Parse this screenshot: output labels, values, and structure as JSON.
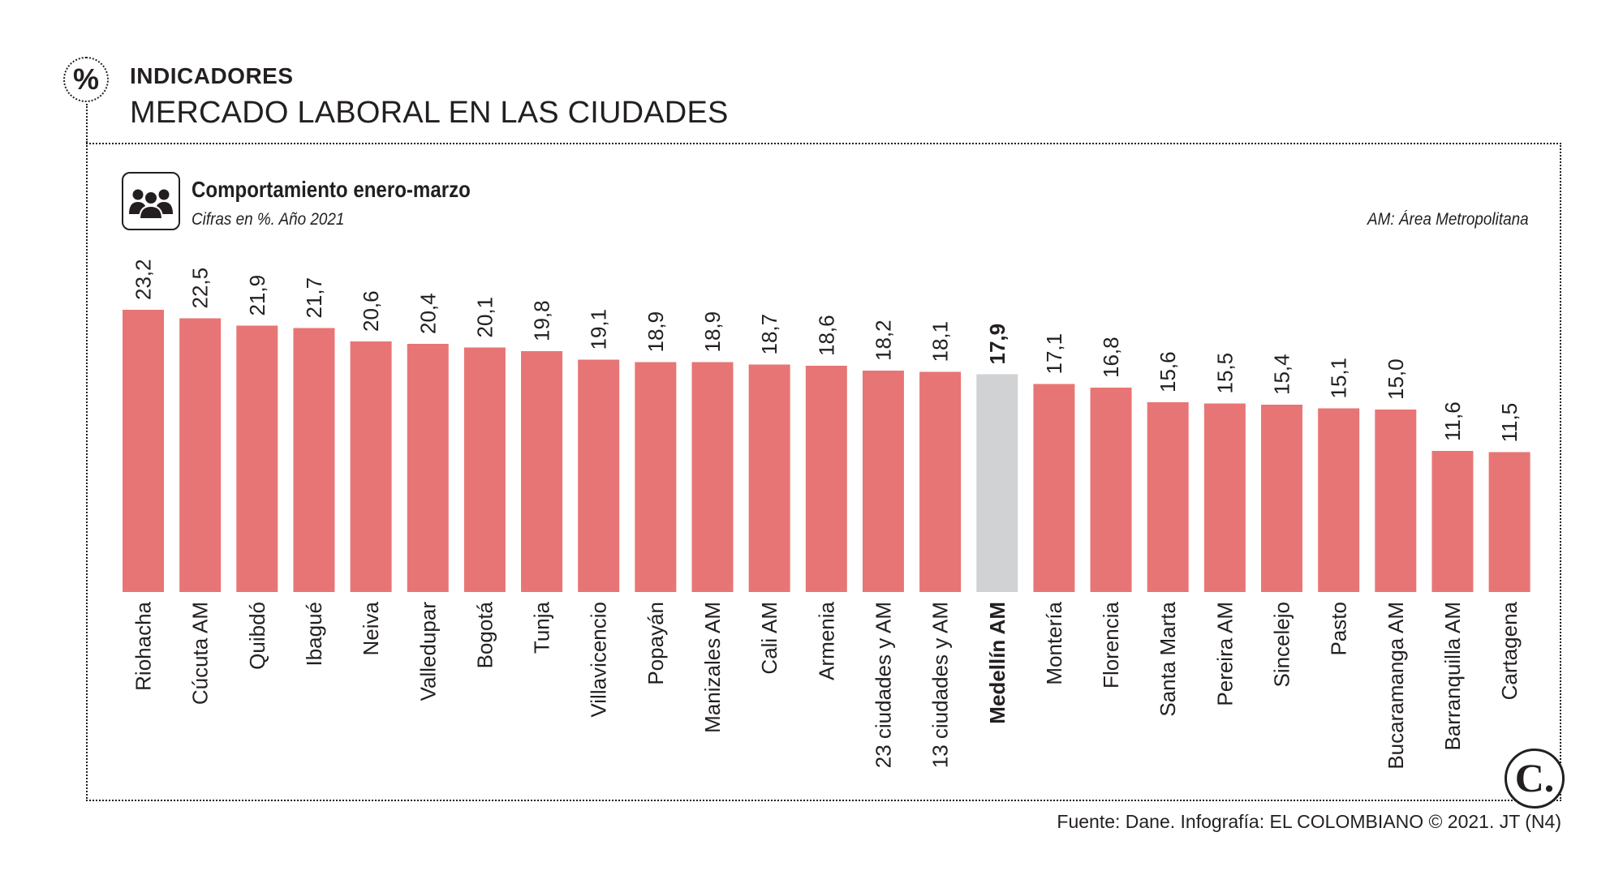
{
  "header": {
    "section_icon": "%",
    "section_label": "INDICADORES",
    "headline": "MERCADO LABORAL EN LAS CIUDADES"
  },
  "chart_header": {
    "icon": "people-group-icon",
    "title": "Comportamiento enero-marzo",
    "subtitle": "Cifras en %. Año 2021",
    "note": "AM: Área Metropolitana"
  },
  "footer": {
    "logo_letter": "C.",
    "source": "Fuente: Dane. Infografía: EL COLOMBIANO © 2021. JT (N4)"
  },
  "colors": {
    "bar": "#e87575",
    "highlight_bar": "#d1d2d4",
    "text": "#231f20"
  },
  "chart_data": {
    "type": "bar",
    "title": "Comportamiento enero-marzo",
    "subtitle": "Cifras en %. Año 2021",
    "xlabel": "",
    "ylabel": "",
    "ylim": [
      0,
      23.2
    ],
    "grid": false,
    "highlight": "Medellín AM",
    "categories": [
      "Riohacha",
      "Cúcuta AM",
      "Quibdó",
      "Ibagué",
      "Neiva",
      "Valledupar",
      "Bogotá",
      "Tunja",
      "Villavicencio",
      "Popayán",
      "Manizales AM",
      "Cali AM",
      "Armenia",
      "23 ciudades y AM",
      "13 ciudades y AM",
      "Medellín AM",
      "Montería",
      "Florencia",
      "Santa Marta",
      "Pereira AM",
      "Sincelejo",
      "Pasto",
      "Bucaramanga AM",
      "Barranquilla AM",
      "Cartagena"
    ],
    "values": [
      23.2,
      22.5,
      21.9,
      21.7,
      20.6,
      20.4,
      20.1,
      19.8,
      19.1,
      18.9,
      18.9,
      18.7,
      18.6,
      18.2,
      18.1,
      17.9,
      17.1,
      16.8,
      15.6,
      15.5,
      15.4,
      15.1,
      15.0,
      11.6,
      11.5
    ],
    "value_labels": [
      "23,2",
      "22,5",
      "21,9",
      "21,7",
      "20,6",
      "20,4",
      "20,1",
      "19,8",
      "19,1",
      "18,9",
      "18,9",
      "18,7",
      "18,6",
      "18,2",
      "18,1",
      "17,9",
      "17,1",
      "16,8",
      "15,6",
      "15,5",
      "15,4",
      "15,1",
      "15,0",
      "11,6",
      "11,5"
    ]
  }
}
